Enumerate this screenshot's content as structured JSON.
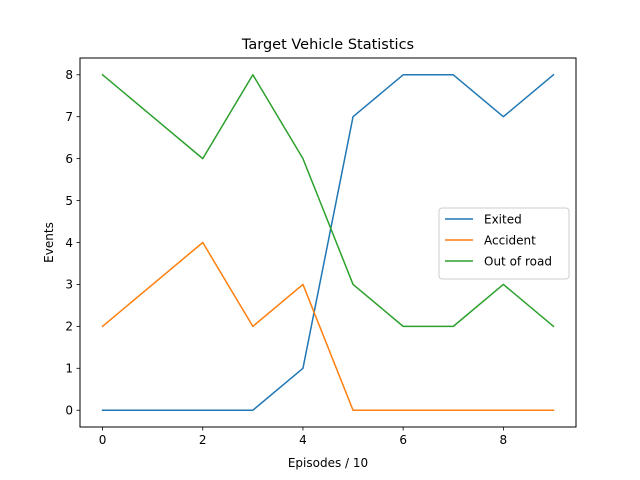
{
  "chart_data": {
    "type": "line",
    "title": "Target Vehicle Statistics",
    "xlabel": "Episodes / 10",
    "ylabel": "Events",
    "x": [
      0,
      1,
      2,
      3,
      4,
      5,
      6,
      7,
      8,
      9
    ],
    "xlim": [
      -0.45,
      9.45
    ],
    "ylim": [
      -0.4,
      8.4
    ],
    "xticks": [
      0,
      2,
      4,
      6,
      8
    ],
    "yticks": [
      0,
      1,
      2,
      3,
      4,
      5,
      6,
      7,
      8
    ],
    "grid": false,
    "legend_position": "center-right",
    "series": [
      {
        "name": "Exited",
        "color": "#1f77b4",
        "values": [
          0,
          0,
          0,
          0,
          1,
          7,
          8,
          8,
          7,
          8
        ]
      },
      {
        "name": "Accident",
        "color": "#ff7f0e",
        "values": [
          2,
          3,
          4,
          2,
          3,
          0,
          0,
          0,
          0,
          0
        ]
      },
      {
        "name": "Out of road",
        "color": "#2ca02c",
        "values": [
          8,
          7,
          6,
          8,
          6,
          3,
          2,
          2,
          3,
          2
        ]
      }
    ]
  }
}
